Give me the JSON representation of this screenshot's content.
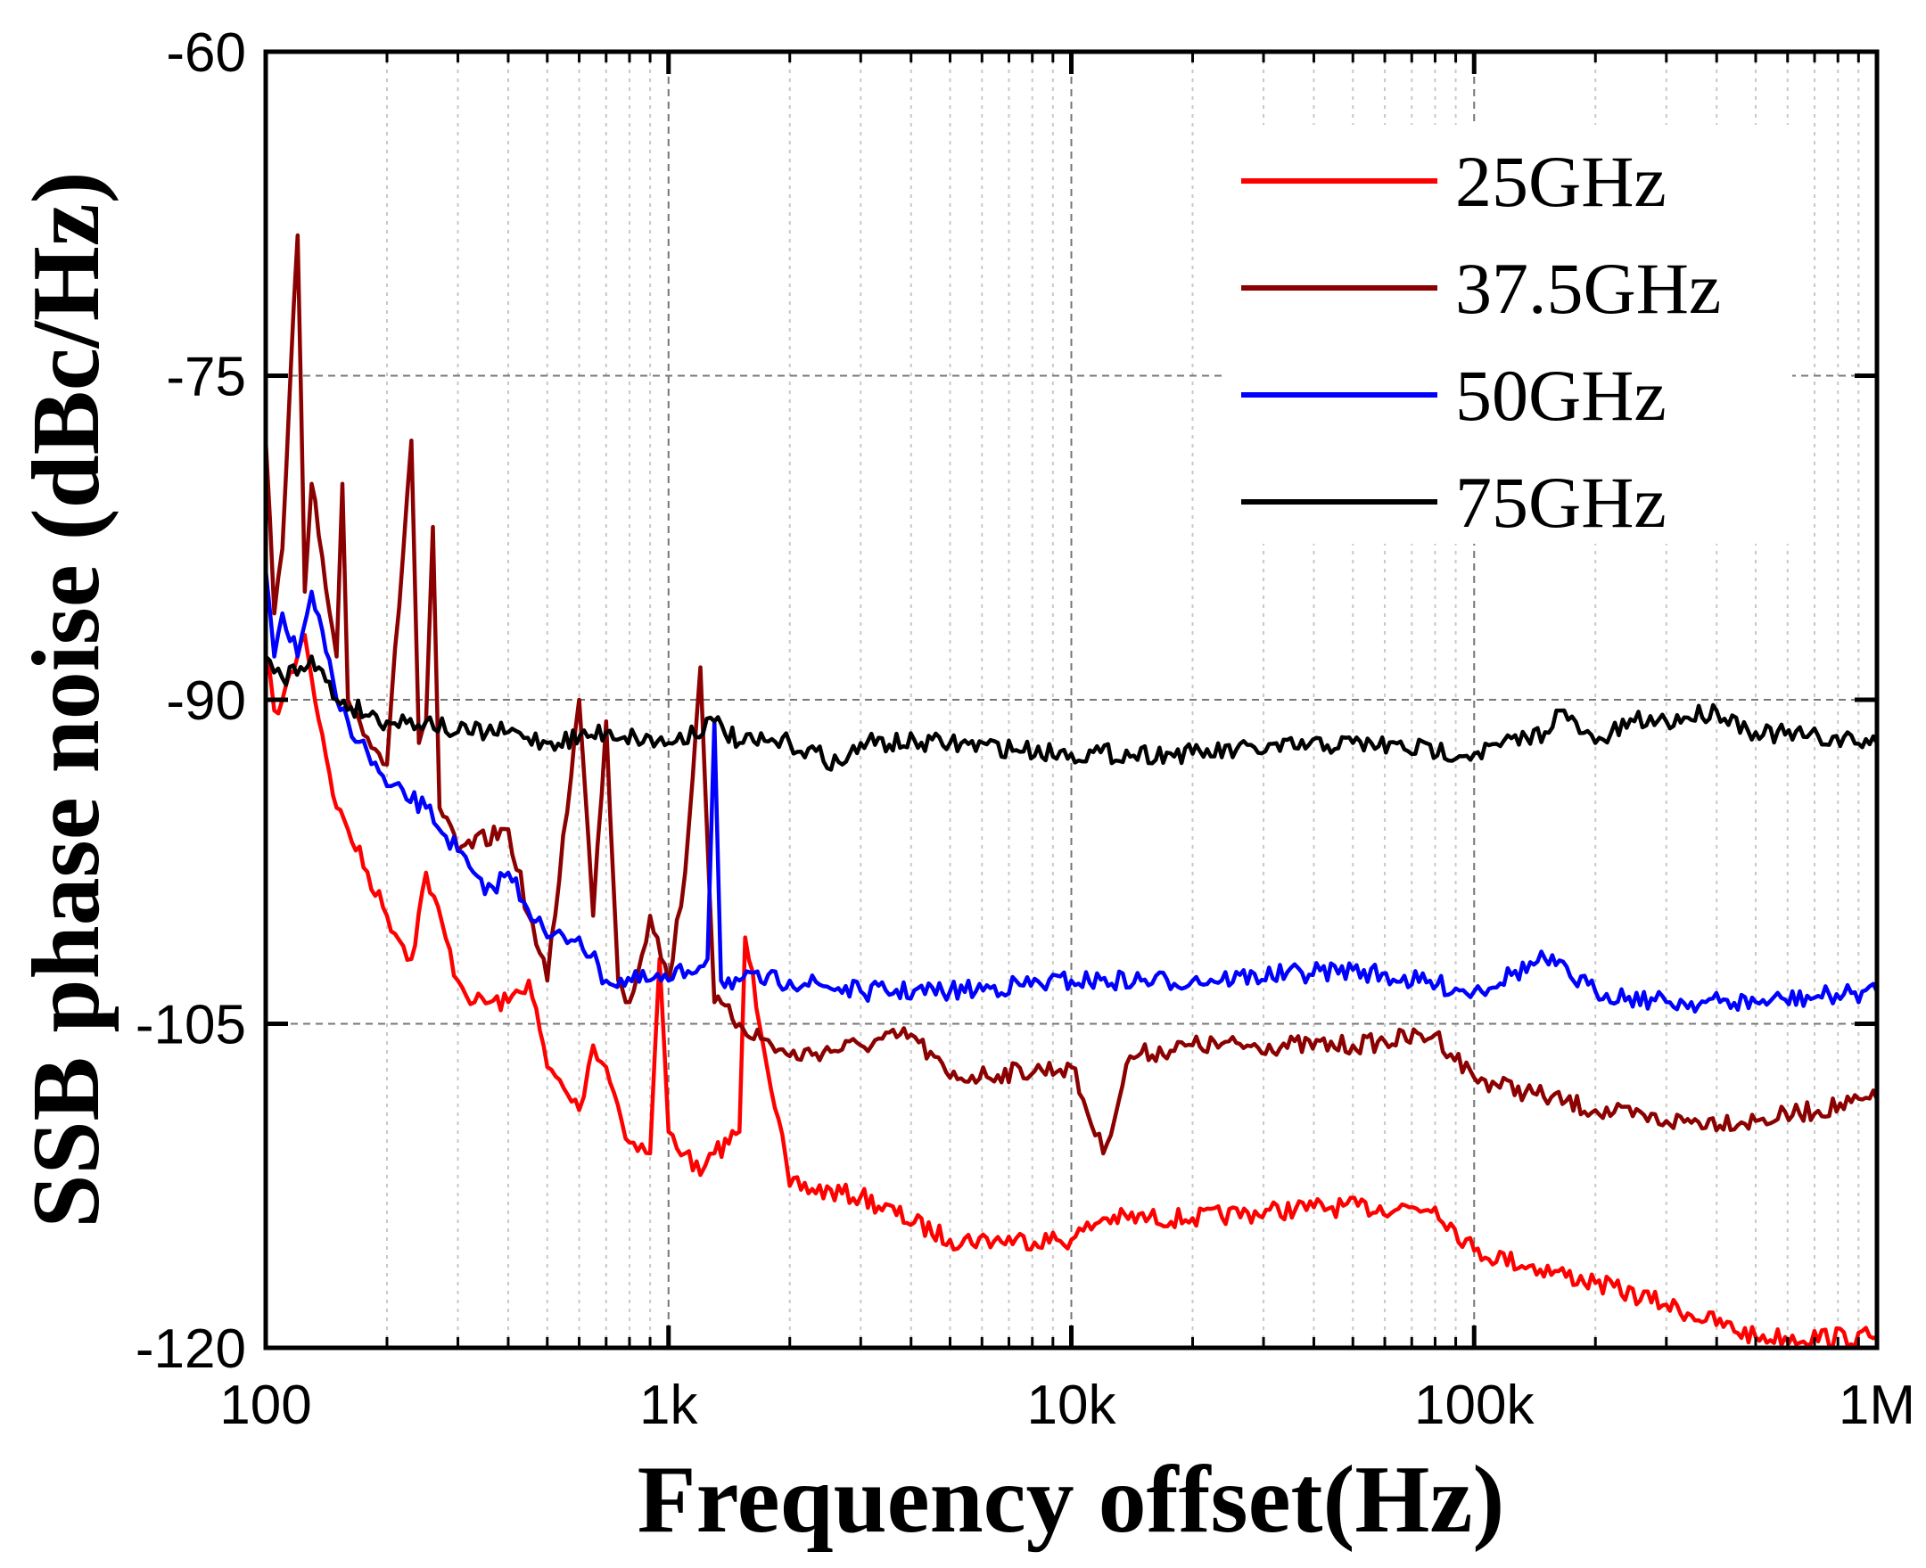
{
  "chart_data": {
    "type": "line",
    "title": "",
    "xlabel": "Frequency offset(Hz)",
    "ylabel": "SSB phase noise (dBc/Hz)",
    "xscale": "log",
    "xlim": [
      100,
      1000000
    ],
    "ylim": [
      -120,
      -60
    ],
    "xticks": [
      100,
      1000,
      10000,
      100000,
      1000000
    ],
    "xtick_labels": [
      "100",
      "1k",
      "10k",
      "100k",
      "1M"
    ],
    "yticks": [
      -60,
      -75,
      -90,
      -105,
      -120
    ],
    "ytick_labels": [
      "-60",
      "-75",
      "-90",
      "-105",
      "-120"
    ],
    "grid": true,
    "legend_position": "top-right",
    "series": [
      {
        "name": "25GHz",
        "color": "#ff0000",
        "x": [
          100,
          105,
          110,
          125,
          130,
          150,
          160,
          200,
          230,
          250,
          300,
          330,
          400,
          450,
          500,
          550,
          600,
          650,
          700,
          800,
          900,
          950,
          1000,
          1100,
          1200,
          1300,
          1500,
          1550,
          2000,
          3000,
          5000,
          10000,
          12000,
          20000,
          40000,
          80000,
          100000,
          200000,
          300000,
          500000,
          1000000
        ],
        "y": [
          -88,
          -90.5,
          -90,
          -87,
          -89,
          -95,
          -96,
          -100,
          -102,
          -98,
          -103,
          -104,
          -104,
          -103,
          -107,
          -108,
          -109,
          -106,
          -107,
          -110.5,
          -111,
          -102,
          -110,
          -111,
          -112,
          -111,
          -110,
          -101,
          -112.5,
          -113,
          -115,
          -115,
          -114,
          -114,
          -113.5,
          -113.5,
          -115.5,
          -117,
          -118,
          -119.5,
          -119.5
        ]
      },
      {
        "name": "37.5GHz",
        "color": "#8b0000",
        "x": [
          100,
          105,
          110,
          120,
          125,
          130,
          150,
          155,
          160,
          200,
          230,
          240,
          250,
          260,
          270,
          300,
          400,
          450,
          500,
          600,
          650,
          700,
          750,
          800,
          900,
          1000,
          1100,
          1200,
          1300,
          1500,
          2000,
          3000,
          4000,
          5000,
          10000,
          12000,
          14000,
          20000,
          50000,
          80000,
          100000,
          200000,
          300000,
          500000,
          1000000
        ],
        "y": [
          -78,
          -86,
          -83,
          -68.5,
          -85,
          -80,
          -88,
          -80,
          -90,
          -93,
          -78,
          -92,
          -91,
          -82,
          -95,
          -97,
          -96,
          -100,
          -103,
          -90,
          -100,
          -91,
          -103,
          -104,
          -100,
          -103,
          -98,
          -88.5,
          -104,
          -105,
          -106.5,
          -106,
          -105.5,
          -107.5,
          -107,
          -111,
          -106.5,
          -106,
          -106,
          -105.5,
          -107.5,
          -109,
          -109.5,
          -109.5,
          -108.5
        ]
      },
      {
        "name": "50GHz",
        "color": "#0000ff",
        "x": [
          100,
          105,
          110,
          120,
          130,
          150,
          160,
          200,
          250,
          300,
          350,
          400,
          500,
          600,
          700,
          1000,
          1250,
          1300,
          1350,
          1500,
          2000,
          3000,
          5000,
          10000,
          20000,
          50000,
          100000,
          150000,
          200000,
          300000,
          500000,
          1000000
        ],
        "y": [
          -84,
          -88,
          -86,
          -88,
          -85,
          -90,
          -91,
          -94,
          -95,
          -97,
          -99,
          -98,
          -101,
          -101,
          -103,
          -103,
          -102,
          -91,
          -103,
          -103,
          -103,
          -103.5,
          -103.5,
          -103,
          -103,
          -102.5,
          -103.5,
          -102,
          -103.5,
          -104,
          -104,
          -103.5
        ]
      },
      {
        "name": "75GHz",
        "color": "#000000",
        "x": [
          100,
          110,
          130,
          150,
          200,
          250,
          300,
          400,
          500,
          700,
          1000,
          1300,
          1500,
          2000,
          2700,
          3000,
          5000,
          10000,
          20000,
          50000,
          100000,
          150000,
          160000,
          200000,
          250000,
          300000,
          400000,
          500000,
          1000000
        ],
        "y": [
          -88,
          -89,
          -88,
          -90,
          -91,
          -91,
          -91.5,
          -91.5,
          -92,
          -91.5,
          -92,
          -91,
          -92,
          -92,
          -93,
          -92,
          -92,
          -92.5,
          -92.5,
          -92,
          -92.5,
          -91.5,
          -90.5,
          -92,
          -91,
          -91,
          -90.5,
          -91.5,
          -92
        ]
      }
    ]
  }
}
